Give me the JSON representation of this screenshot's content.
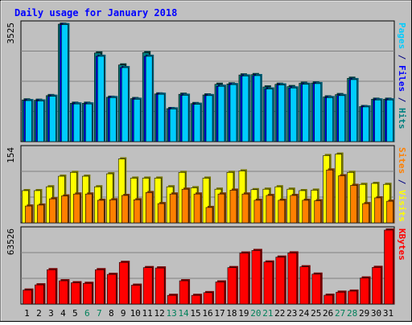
{
  "chart_data": {
    "type": "bar",
    "title": "Daily usage for January 2018",
    "categories": [
      "1",
      "2",
      "3",
      "4",
      "5",
      "6",
      "7",
      "8",
      "9",
      "10",
      "11",
      "12",
      "13",
      "14",
      "15",
      "16",
      "17",
      "18",
      "19",
      "20",
      "21",
      "22",
      "23",
      "24",
      "25",
      "26",
      "27",
      "28",
      "29",
      "30",
      "31"
    ],
    "weekend_days": [
      "6",
      "7",
      "13",
      "14",
      "20",
      "21",
      "27",
      "28"
    ],
    "panels": [
      {
        "id": "top",
        "ymax_label": "3525",
        "ymax": 3525,
        "right_label": [
          {
            "text": "Pages",
            "color": "#00ccff"
          },
          {
            "text": " / ",
            "color": "#000080"
          },
          {
            "text": "Files",
            "color": "#0000ff"
          },
          {
            "text": " / ",
            "color": "#000080"
          },
          {
            "text": "Hits",
            "color": "#008080"
          }
        ],
        "series": [
          {
            "name": "Hits",
            "color": "#008080",
            "values": [
              1250,
              1240,
              1380,
              3525,
              1150,
              1150,
              2660,
              1330,
              2300,
              1290,
              2670,
              1430,
              990,
              1420,
              1140,
              1400,
              1720,
              1730,
              2000,
              2010,
              1640,
              1720,
              1650,
              1750,
              1760,
              1340,
              1410,
              1900,
              1050,
              1270,
              1270
            ]
          },
          {
            "name": "Files",
            "color": "#0000ff",
            "values": [
              1230,
              1220,
              1360,
              3510,
              1130,
              1130,
              2560,
              1320,
              2220,
              1270,
              2560,
              1420,
              980,
              1390,
              1120,
              1380,
              1660,
              1710,
              1970,
              1980,
              1580,
              1700,
              1610,
              1720,
              1740,
              1320,
              1380,
              1860,
              1040,
              1250,
              1250
            ]
          },
          {
            "name": "Pages",
            "color": "#00ccff",
            "values": [
              1230,
              1220,
              1360,
              3510,
              1130,
              1130,
              2560,
              1320,
              2220,
              1270,
              2560,
              1420,
              980,
              1390,
              1120,
              1380,
              1660,
              1710,
              1970,
              1980,
              1580,
              1700,
              1610,
              1720,
              1740,
              1320,
              1380,
              1860,
              1040,
              1250,
              1250
            ]
          }
        ]
      },
      {
        "id": "middle",
        "ymax_label": "154",
        "ymax": 154,
        "right_label": [
          {
            "text": "Sites",
            "color": "#ff8000"
          },
          {
            "text": " / ",
            "color": "#000080"
          },
          {
            "text": "Visits",
            "color": "#ffff00"
          }
        ],
        "series": [
          {
            "name": "Visits",
            "color": "#ffff00",
            "values": [
              67,
              67,
              75,
              97,
              105,
              97,
              75,
              102,
              133,
              93,
              93,
              93,
              75,
              105,
              73,
              93,
              70,
              105,
              108,
              69,
              70,
              75,
              70,
              67,
              68,
              140,
              143,
              105,
              80,
              82,
              80
            ]
          },
          {
            "name": "Sites",
            "color": "#ff8000",
            "values": [
              35,
              37,
              50,
              56,
              60,
              60,
              47,
              48,
              57,
              48,
              63,
              40,
              60,
              70,
              60,
              32,
              60,
              68,
              60,
              47,
              57,
              47,
              57,
              47,
              46,
              110,
              98,
              78,
              40,
              52,
              45
            ]
          }
        ]
      },
      {
        "id": "bottom",
        "ymax_label": "63526",
        "ymax": 63526,
        "right_label": [
          {
            "text": "KBytes",
            "color": "#ff0000"
          }
        ],
        "series": [
          {
            "name": "KBytes",
            "color": "#ff0000",
            "values": [
              12000,
              16500,
              29500,
              20000,
              18300,
              17800,
              29500,
              25500,
              35800,
              16200,
              31300,
              31000,
              7500,
              20000,
              7500,
              9800,
              19000,
              31300,
              43800,
              46000,
              36100,
              40300,
              43900,
              32000,
              25700,
              7600,
              10200,
              11100,
              22400,
              31500,
              63526
            ]
          }
        ]
      }
    ],
    "colors": {
      "page_bg": "#ffffff",
      "frame_bg": "#c0c0c0",
      "plot_bg": "#c0c0c0",
      "title_color": "#0000ff",
      "weekday_label": "#000000",
      "weekend_label": "#00805a",
      "gridline": "#808080"
    }
  }
}
